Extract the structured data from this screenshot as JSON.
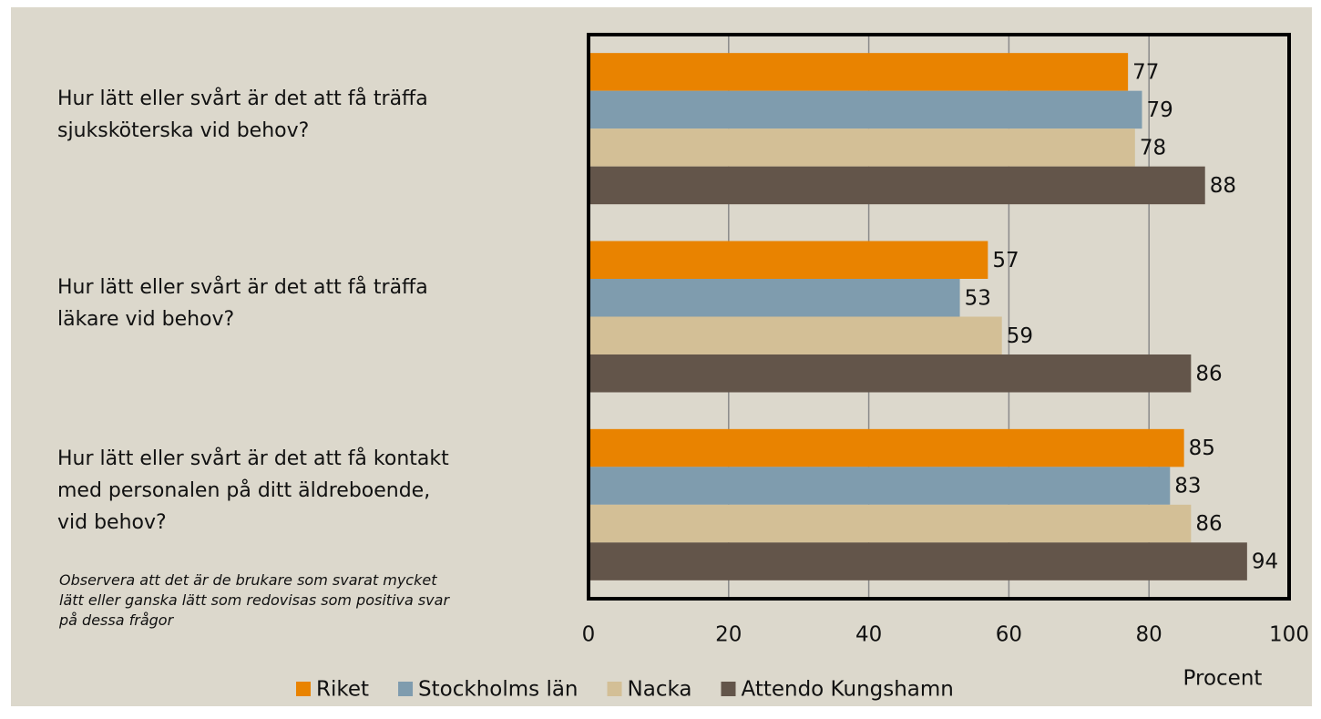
{
  "chart_data": {
    "type": "bar",
    "orientation": "horizontal",
    "categories": [
      "Hur lätt eller svårt är det att få träffa\nsjuksköterska vid behov?",
      "Hur lätt eller svårt är det att få träffa\nläkare vid behov?",
      "Hur lätt eller svårt är det att få kontakt\nmed personalen på ditt äldreboende,\nvid behov?"
    ],
    "series": [
      {
        "name": "Riket",
        "color": "#e98300",
        "values": [
          77,
          57,
          85
        ]
      },
      {
        "name": "Stockholms län",
        "color": "#7f9cae",
        "values": [
          79,
          53,
          83
        ]
      },
      {
        "name": "Nacka",
        "color": "#d3bf96",
        "values": [
          78,
          59,
          86
        ]
      },
      {
        "name": "Attendo Kungshamn",
        "color": "#63554a",
        "values": [
          88,
          86,
          94
        ]
      }
    ],
    "xlim": [
      0,
      100
    ],
    "xticks": [
      0,
      20,
      40,
      60,
      80,
      100
    ],
    "grid": true,
    "x_label": "Procent",
    "note": "Observera att det är de brukare som svarat mycket\nlätt eller ganska lätt som redovisas som positiva svar\npå dessa frågor",
    "legend": "bottom"
  }
}
